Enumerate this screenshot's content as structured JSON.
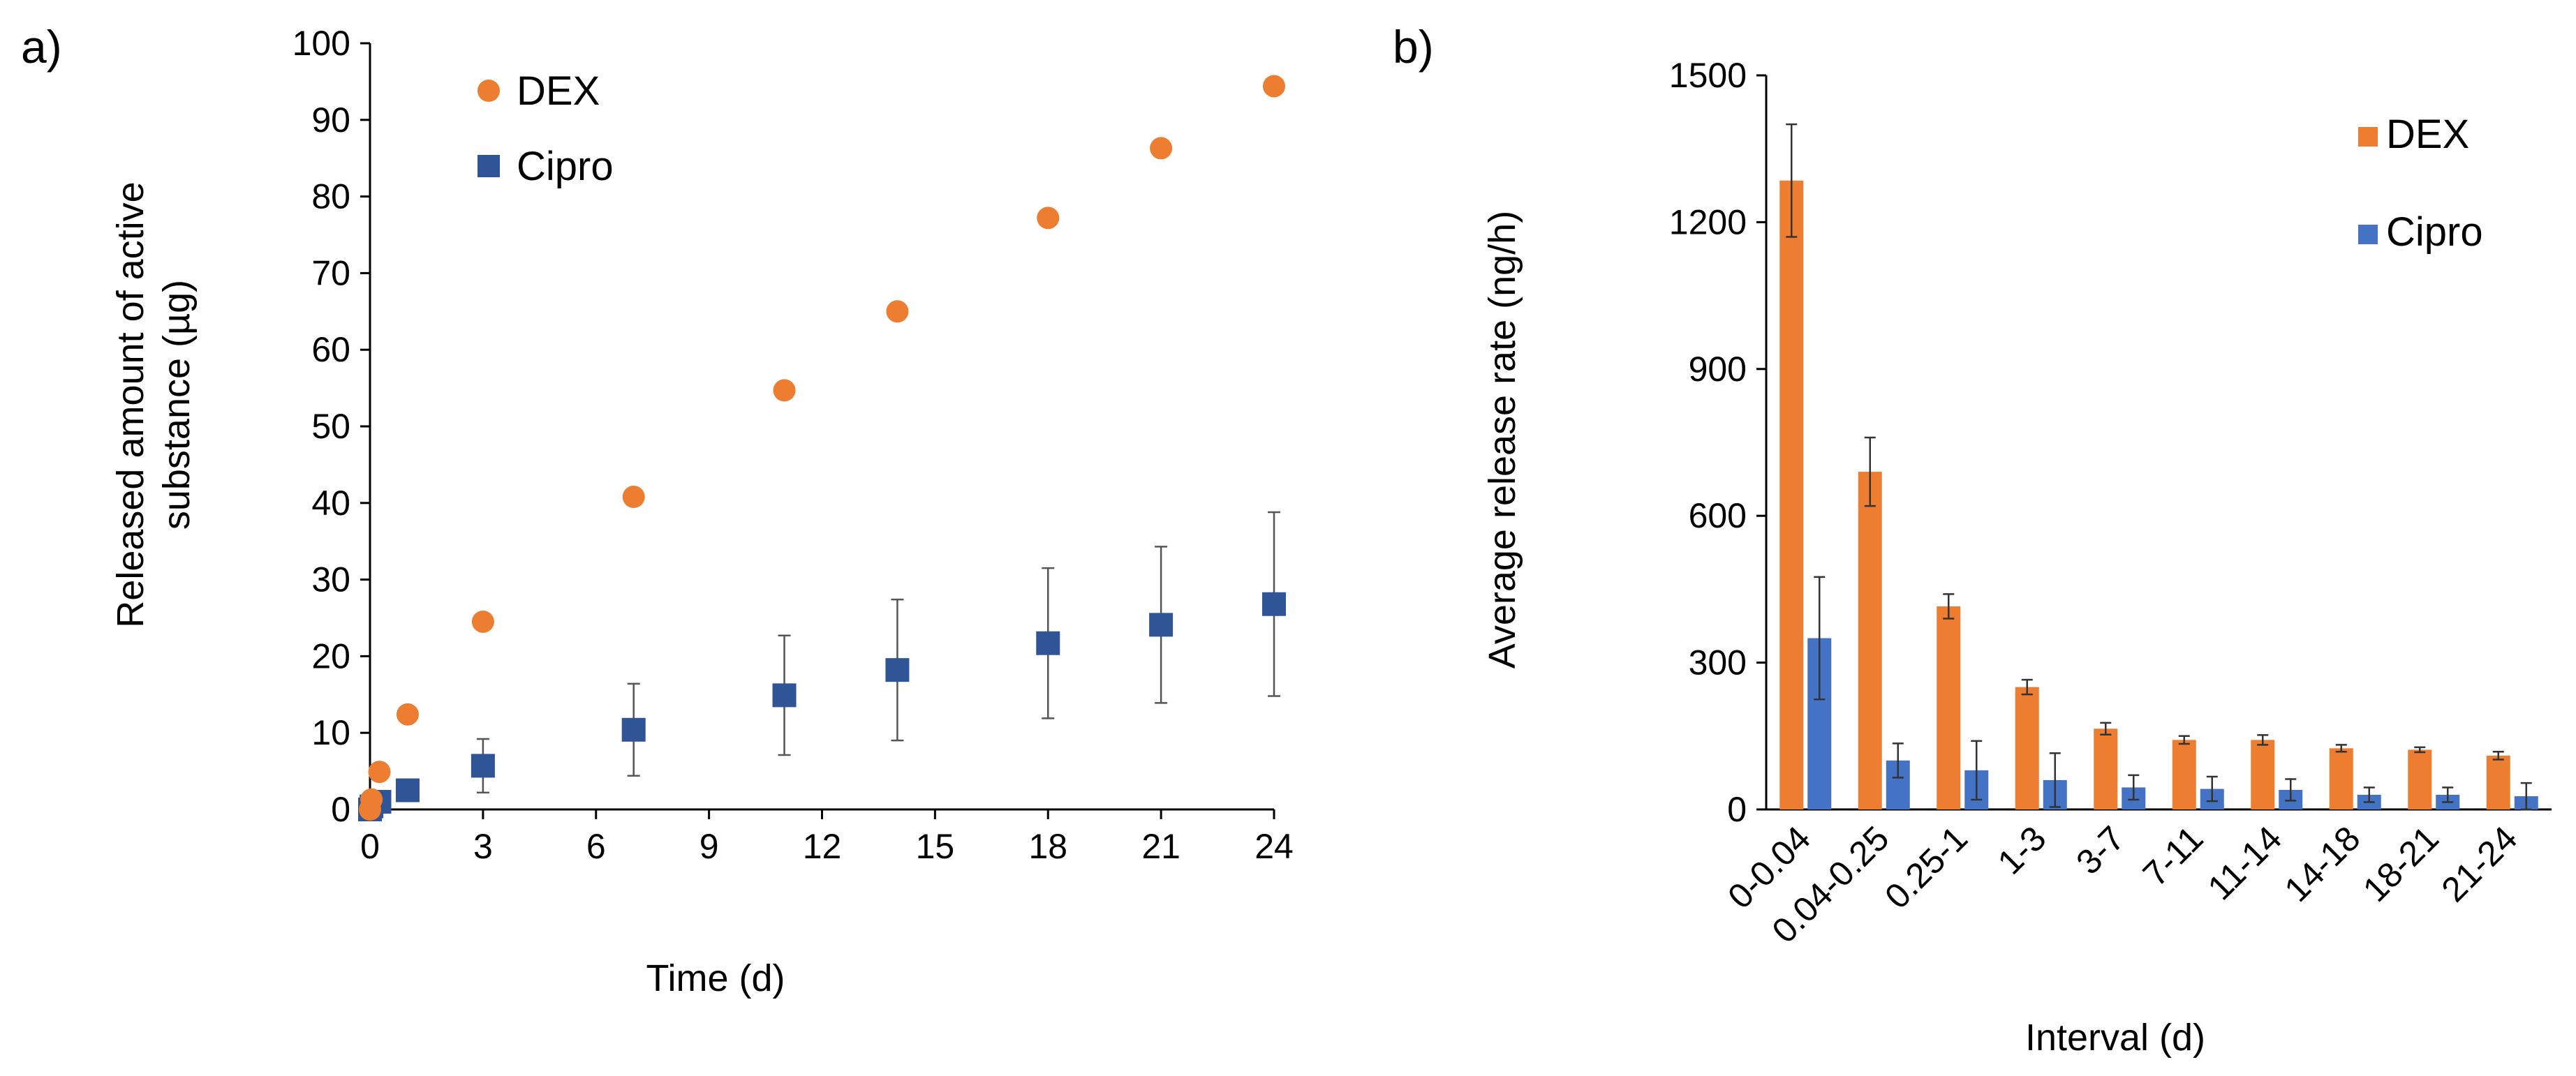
{
  "colors": {
    "dex": "#ED7D31",
    "cipro": "#2F5597",
    "cipro_bar": "#4472C4",
    "axis": "#000000",
    "error": "#333333"
  },
  "chart_data": [
    {
      "panel": "a)",
      "type": "scatter",
      "title": "",
      "xlabel": "Time (d)",
      "ylabel_line1": "Released amount of active",
      "ylabel_line2": "substance (µg)",
      "xlim": [
        0,
        24
      ],
      "ylim": [
        0,
        100
      ],
      "x_ticks": [
        "0",
        "3",
        "6",
        "9",
        "12",
        "15",
        "18",
        "21",
        "24"
      ],
      "y_ticks": [
        "0",
        "10",
        "20",
        "30",
        "40",
        "50",
        "60",
        "70",
        "80",
        "90",
        "100"
      ],
      "series": [
        {
          "name": "DEX",
          "marker": "circle",
          "x": [
            0,
            0.04,
            0.25,
            1,
            3,
            7,
            11,
            14,
            18,
            21,
            24
          ],
          "y": [
            0,
            1.3,
            4.9,
            12.4,
            24.5,
            40.8,
            54.7,
            65.0,
            77.2,
            86.3,
            94.4
          ],
          "error": [
            0,
            0,
            0,
            0,
            0,
            0,
            0,
            0,
            0,
            0,
            0
          ]
        },
        {
          "name": "Cipro",
          "marker": "square",
          "x": [
            0,
            0.04,
            0.25,
            1,
            3,
            7,
            11,
            14,
            18,
            21,
            24
          ],
          "y": [
            0,
            0.4,
            1.0,
            2.5,
            5.7,
            10.4,
            14.9,
            18.2,
            21.7,
            24.1,
            26.8
          ],
          "error": [
            0,
            0.2,
            0.4,
            1.0,
            3.5,
            6.0,
            7.8,
            9.2,
            9.8,
            10.2,
            12.0
          ]
        }
      ]
    },
    {
      "panel": "b)",
      "type": "bar",
      "title": "",
      "xlabel": "Interval (d)",
      "ylabel": "Average release rate (ng/h)",
      "ylim": [
        0,
        1500
      ],
      "y_ticks": [
        "0",
        "300",
        "600",
        "900",
        "1200",
        "1500"
      ],
      "categories": [
        "0-0.04",
        "0.04-0.25",
        "0.25-1",
        "1-3",
        "3-7",
        "7-11",
        "11-14",
        "14-18",
        "18-21",
        "21-24"
      ],
      "series": [
        {
          "name": "DEX",
          "values": [
            1285,
            690,
            415,
            250,
            165,
            142,
            142,
            125,
            122,
            110
          ],
          "error": [
            115,
            70,
            25,
            15,
            12,
            8,
            10,
            7,
            5,
            8
          ]
        },
        {
          "name": "Cipro",
          "values": [
            350,
            100,
            80,
            60,
            45,
            42,
            40,
            30,
            30,
            27
          ],
          "error": [
            125,
            35,
            60,
            55,
            25,
            25,
            22,
            15,
            15,
            27
          ]
        }
      ]
    }
  ]
}
